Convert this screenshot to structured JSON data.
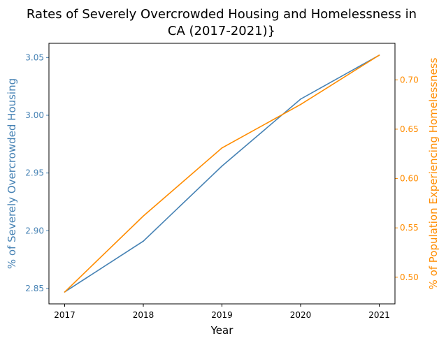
{
  "chart_data": {
    "type": "line",
    "title": "Rates of Severely Overcrowded Housing and Homelessness in CA (2017-2021)}",
    "title_lines": [
      "Rates of Severely Overcrowded Housing and Homelessness in",
      "CA (2017-2021)}"
    ],
    "xlabel": "Year",
    "ylabel_left": "% of Severely Overcrowded Housing",
    "ylabel_right": "% of Population Experiencing Homelessness",
    "x": [
      2017,
      2018,
      2019,
      2020,
      2021
    ],
    "x_tick_labels": [
      "2017",
      "2018",
      "2019",
      "2020",
      "2021"
    ],
    "series": [
      {
        "axis": "left",
        "color": "#4682b4",
        "values": [
          2.847,
          2.891,
          2.956,
          3.014,
          3.052
        ]
      },
      {
        "axis": "right",
        "color": "#ff8c00",
        "values": [
          0.485,
          0.562,
          0.631,
          0.675,
          0.725
        ]
      }
    ],
    "y_left_ticks": [
      2.85,
      2.9,
      2.95,
      3.0,
      3.05
    ],
    "y_left_tick_labels": [
      "2.85",
      "2.90",
      "2.95",
      "3.00",
      "3.05"
    ],
    "y_left_range": [
      2.8367,
      3.0623
    ],
    "y_right_ticks": [
      0.5,
      0.55,
      0.6,
      0.65,
      0.7
    ],
    "y_right_tick_labels": [
      "0.50",
      "0.55",
      "0.60",
      "0.65",
      "0.70"
    ],
    "y_right_range": [
      0.473,
      0.737
    ],
    "x_range": [
      2016.8,
      2021.2
    ],
    "grid": false,
    "legend": "none"
  }
}
